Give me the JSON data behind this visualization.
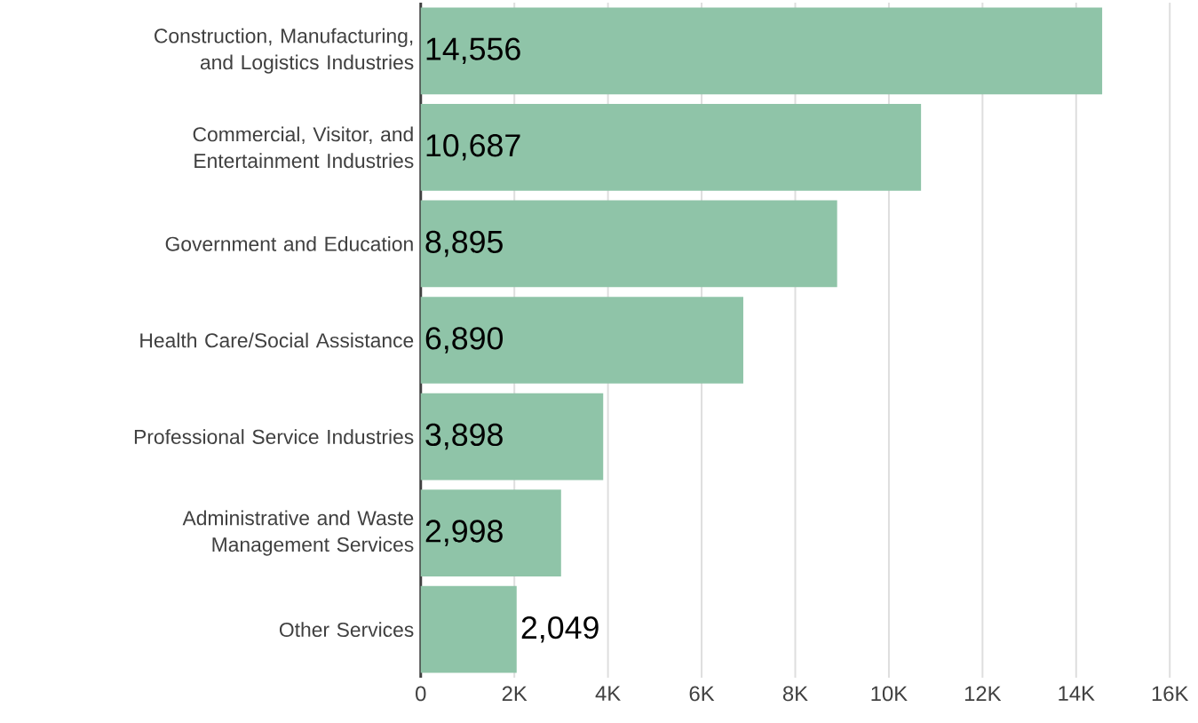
{
  "chart_data": {
    "type": "bar",
    "orientation": "horizontal",
    "categories": [
      "Construction, Manufacturing, and Logistics Industries",
      "Commercial, Visitor, and Entertainment Industries",
      "Government and Education",
      "Health Care/Social Assistance",
      "Professional Service Industries",
      "Administrative and Waste Management Services",
      "Other Services"
    ],
    "values": [
      14556,
      10687,
      8895,
      6890,
      3898,
      2998,
      2049
    ],
    "value_labels": [
      "14,556",
      "10,687",
      "8,895",
      "6,890",
      "3,898",
      "2,998",
      "2,049"
    ],
    "color": "#8fc4a8",
    "xlim": [
      0,
      16000
    ],
    "xticks": [
      0,
      {
        "value": 2000,
        "label": "2K"
      },
      {
        "value": 4000,
        "label": "4K"
      },
      {
        "value": 6000,
        "label": "6K"
      },
      {
        "value": 8000,
        "label": "8K"
      },
      {
        "value": 10000,
        "label": "10K"
      },
      {
        "value": 12000,
        "label": "12K"
      },
      {
        "value": 14000,
        "label": "14K"
      },
      {
        "value": 16000,
        "label": "16K"
      }
    ],
    "grid": "x"
  }
}
